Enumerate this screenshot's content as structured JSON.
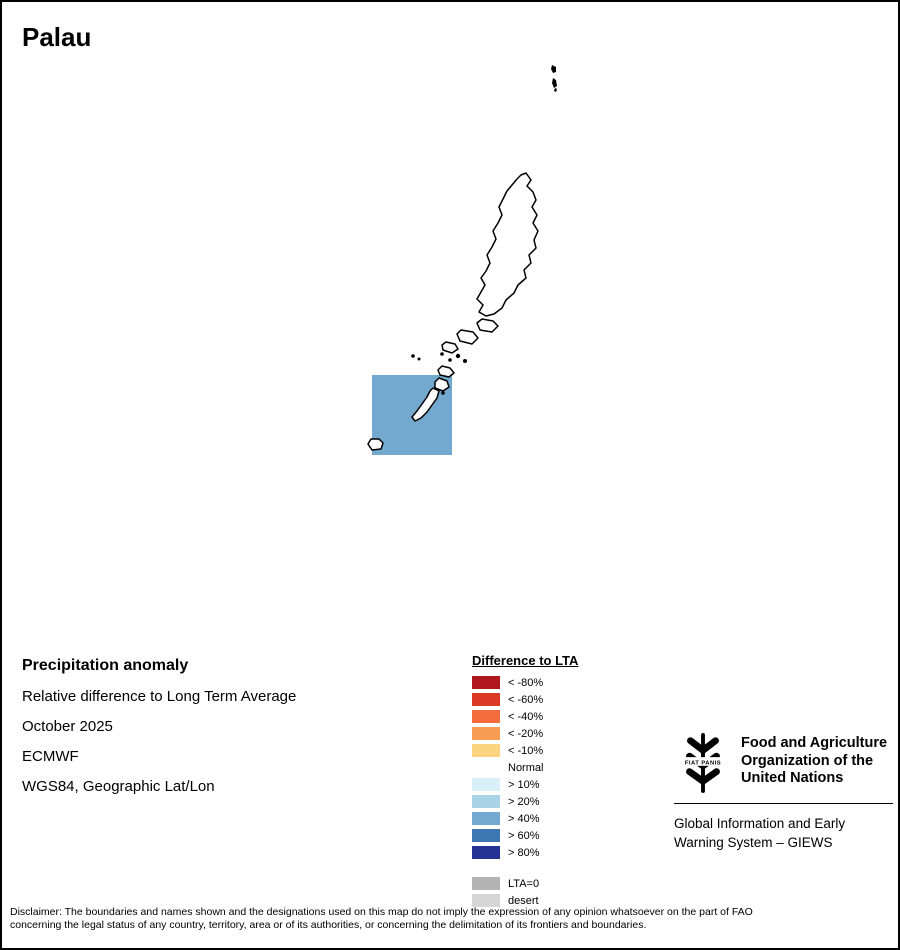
{
  "page": {
    "title": "Palau"
  },
  "map": {
    "country": "Palau",
    "anomaly_cell_color": "#74A9CF"
  },
  "info": {
    "heading": "Precipitation anomaly",
    "lines": [
      "Relative difference to Long Term Average",
      "October 2025",
      "ECMWF",
      "WGS84, Geographic Lat/Lon"
    ]
  },
  "legend": {
    "title": "Difference to LTA",
    "items": [
      {
        "label": "< -80%",
        "color": "#B0171F"
      },
      {
        "label": "< -60%",
        "color": "#DB3B24"
      },
      {
        "label": "< -40%",
        "color": "#F26C3E"
      },
      {
        "label": "< -20%",
        "color": "#F89E54"
      },
      {
        "label": "< -10%",
        "color": "#FCD37F"
      },
      {
        "label": "Normal",
        "color": "#FFFFFF"
      },
      {
        "label": "> 10%",
        "color": "#D9F0F8"
      },
      {
        "label": "> 20%",
        "color": "#A8D3E7"
      },
      {
        "label": "> 40%",
        "color": "#74A9CF"
      },
      {
        "label": "> 60%",
        "color": "#3C77B4"
      },
      {
        "label": "> 80%",
        "color": "#253494"
      }
    ],
    "extra_items": [
      {
        "label": "LTA=0",
        "color": "#B3B3B3"
      },
      {
        "label": "desert",
        "color": "#D6D6D6"
      }
    ]
  },
  "fao": {
    "motto": "FIAT PANIS",
    "name_lines": [
      "Food and Agriculture",
      "Organization of the",
      "United Nations"
    ],
    "giews_lines": [
      "Global Information and Early",
      "Warning System – GIEWS"
    ]
  },
  "disclaimer": {
    "line1": "Disclaimer: The boundaries and names shown and the designations used on this map do not imply the expression of any opinion whatsoever on the part of FAO",
    "line2": "concerning the legal status of any country, territory, area or of its authorities, or concerning the delimitation of its frontiers and boundaries."
  }
}
